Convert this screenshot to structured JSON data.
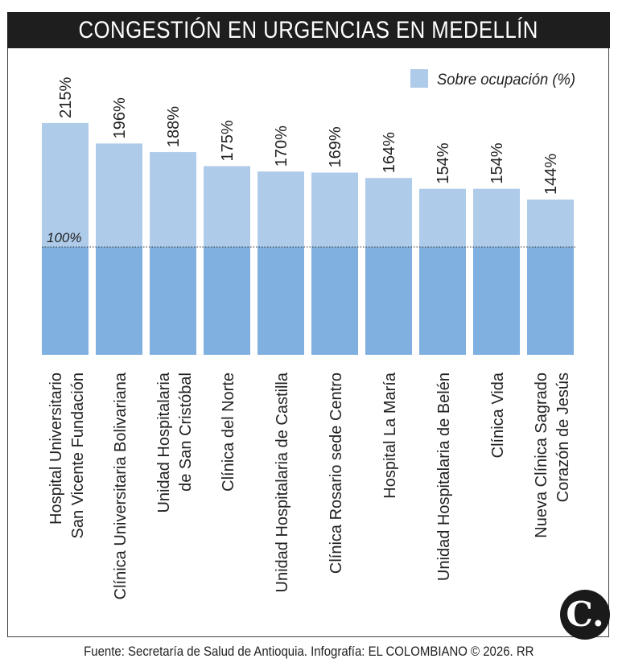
{
  "chart_data": {
    "type": "bar",
    "title": "CONGESTIÓN EN URGENCIAS EN MEDELLÍN",
    "categories": [
      [
        "Hospital Universitario",
        "San Vicente Fundación"
      ],
      [
        "Clínica Universitaria Bolivariana"
      ],
      [
        "Unidad Hospitalaria",
        "de San Cristóbal"
      ],
      [
        "Clínica del Norte"
      ],
      [
        "Unidad Hospitalaria de Castilla"
      ],
      [
        "Clínica Rosario sede Centro"
      ],
      [
        "Hospital La María"
      ],
      [
        "Unidad Hospitalaria de Belén"
      ],
      [
        "Clínica Vida"
      ],
      [
        "Nueva Clínica Sagrado",
        "Corazón de Jesús"
      ]
    ],
    "values": [
      215,
      196,
      188,
      175,
      170,
      169,
      164,
      154,
      154,
      144
    ],
    "value_labels": [
      "215%",
      "196%",
      "188%",
      "175%",
      "170%",
      "169%",
      "164%",
      "154%",
      "154%",
      "144%"
    ],
    "series": [
      {
        "name": "Sobre ocupación (%)",
        "values": [
          215,
          196,
          188,
          175,
          170,
          169,
          164,
          154,
          154,
          144
        ]
      }
    ],
    "reference_line": {
      "value": 100,
      "label": "100%",
      "style": "dotted"
    },
    "ylim": [
      0,
      230
    ],
    "legend_position": "top-right",
    "grid": false,
    "colors": {
      "above_100": "#aecbea",
      "below_100": "#7fb0e0"
    }
  },
  "footer": "Fuente: Secretaría de Salud de Antioquia. Infografía: EL COLOMBIANO © 2026. RR",
  "logo_text": "C."
}
